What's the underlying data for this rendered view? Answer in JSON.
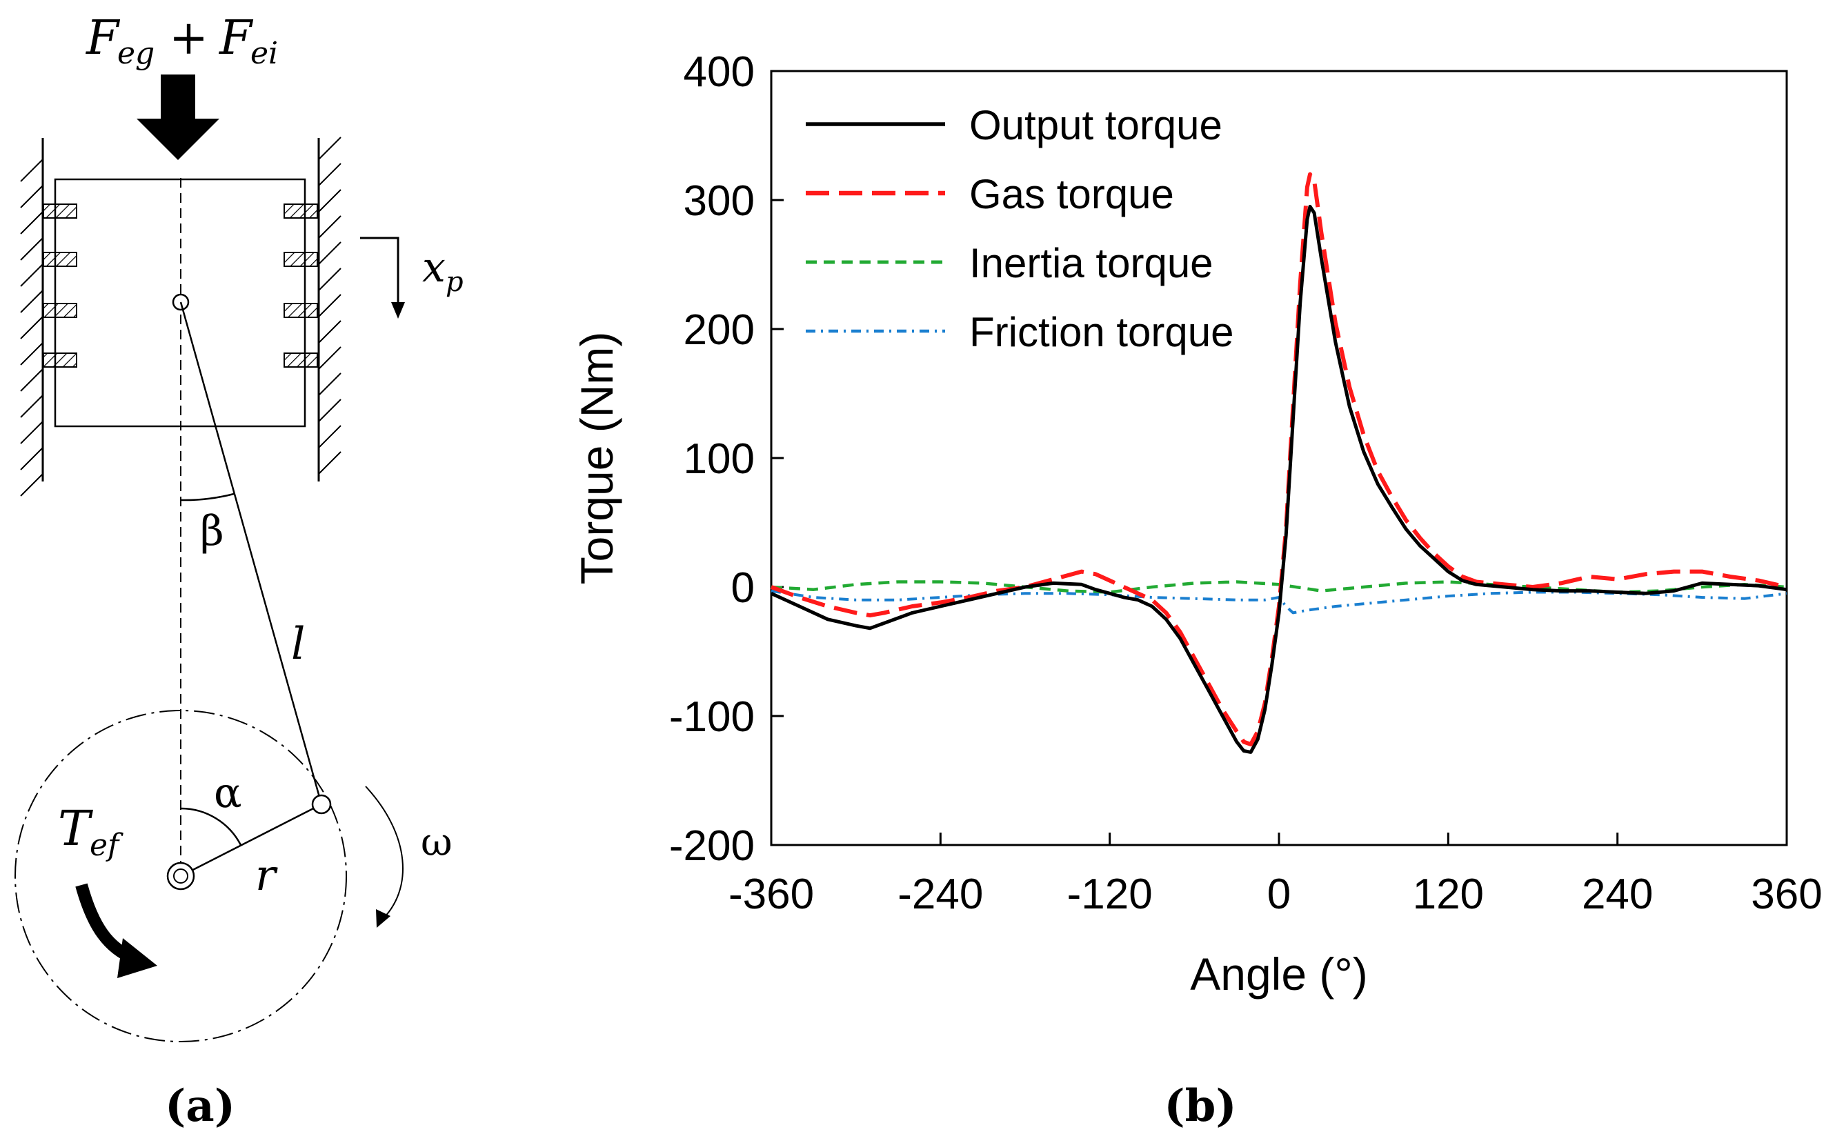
{
  "diagram": {
    "force_label_F1": "F",
    "force_sub_1": "eg",
    "force_plus": "+",
    "force_label_F2": "F",
    "force_sub_2": "ei",
    "xp_label": "x",
    "xp_sub": "p",
    "beta_label": "β",
    "rod_label": "l",
    "alpha_label": "α",
    "crank_label": "r",
    "torque_label": "T",
    "torque_sub": "ef",
    "omega_label": "ω"
  },
  "panel_labels": {
    "a": "(a)",
    "b": "(b)"
  },
  "chart_data": {
    "type": "line",
    "xlabel": "Angle (°)",
    "ylabel": "Torque (Nm)",
    "xlim": [
      -360,
      360
    ],
    "ylim": [
      -200,
      400
    ],
    "xticks": [
      "-360",
      "-240",
      "-120",
      "0",
      "120",
      "240",
      "360"
    ],
    "yticks": [
      "-200",
      "-100",
      "0",
      "100",
      "200",
      "300",
      "400"
    ],
    "legend_position": "top-left",
    "grid": false,
    "series": [
      {
        "name": "Output torque",
        "color": "#000000",
        "style": "solid",
        "x": [
          -360,
          -340,
          -320,
          -300,
          -290,
          -280,
          -260,
          -240,
          -220,
          -200,
          -180,
          -160,
          -140,
          -130,
          -120,
          -110,
          -100,
          -90,
          -80,
          -70,
          -60,
          -50,
          -40,
          -30,
          -25,
          -20,
          -15,
          -10,
          -5,
          0,
          5,
          10,
          15,
          20,
          22,
          25,
          30,
          40,
          50,
          60,
          70,
          80,
          90,
          100,
          110,
          120,
          130,
          140,
          160,
          180,
          200,
          220,
          240,
          260,
          280,
          300,
          320,
          340,
          360
        ],
        "y": [
          -5,
          -15,
          -25,
          -30,
          -32,
          -28,
          -20,
          -15,
          -10,
          -5,
          0,
          3,
          2,
          -2,
          -5,
          -8,
          -10,
          -15,
          -25,
          -40,
          -60,
          -80,
          -100,
          -120,
          -127,
          -128,
          -118,
          -95,
          -60,
          -20,
          40,
          130,
          220,
          285,
          295,
          290,
          255,
          190,
          140,
          105,
          80,
          62,
          45,
          32,
          22,
          12,
          5,
          2,
          0,
          -2,
          -3,
          -3,
          -4,
          -5,
          -3,
          3,
          2,
          1,
          -2
        ]
      },
      {
        "name": "Gas torque",
        "color": "#ff1a1a",
        "style": "dash",
        "x": [
          -360,
          -340,
          -320,
          -300,
          -290,
          -280,
          -260,
          -240,
          -220,
          -200,
          -180,
          -160,
          -140,
          -130,
          -120,
          -110,
          -100,
          -90,
          -80,
          -70,
          -60,
          -50,
          -40,
          -30,
          -25,
          -20,
          -15,
          -10,
          -5,
          0,
          5,
          10,
          15,
          20,
          22,
          25,
          30,
          40,
          50,
          60,
          70,
          80,
          90,
          100,
          110,
          120,
          130,
          140,
          160,
          180,
          200,
          220,
          240,
          260,
          280,
          300,
          320,
          340,
          360
        ],
        "y": [
          0,
          -8,
          -15,
          -20,
          -22,
          -20,
          -15,
          -12,
          -8,
          -3,
          0,
          6,
          12,
          10,
          5,
          0,
          -5,
          -10,
          -20,
          -35,
          -55,
          -75,
          -95,
          -112,
          -120,
          -122,
          -112,
          -90,
          -55,
          -15,
          45,
          140,
          235,
          310,
          320,
          315,
          275,
          205,
          155,
          118,
          90,
          70,
          52,
          38,
          26,
          16,
          8,
          4,
          2,
          0,
          3,
          8,
          6,
          10,
          12,
          12,
          8,
          5,
          0
        ]
      },
      {
        "name": "Inertia torque",
        "color": "#22aa33",
        "style": "shortdash",
        "x": [
          -360,
          -330,
          -300,
          -270,
          -240,
          -210,
          -180,
          -150,
          -120,
          -90,
          -60,
          -30,
          0,
          30,
          60,
          90,
          120,
          150,
          180,
          210,
          240,
          270,
          300,
          330,
          360
        ],
        "y": [
          0,
          -2,
          2,
          4,
          4,
          3,
          0,
          -3,
          -4,
          0,
          3,
          4,
          2,
          -3,
          0,
          3,
          4,
          2,
          0,
          -2,
          -4,
          -3,
          0,
          2,
          0
        ]
      },
      {
        "name": "Friction torque",
        "color": "#1a7fd0",
        "style": "dashdot",
        "x": [
          -360,
          -330,
          -300,
          -270,
          -240,
          -210,
          -180,
          -150,
          -120,
          -90,
          -60,
          -30,
          -10,
          0,
          5,
          10,
          20,
          40,
          60,
          90,
          120,
          150,
          180,
          210,
          240,
          270,
          300,
          330,
          360
        ],
        "y": [
          -3,
          -8,
          -10,
          -10,
          -8,
          -6,
          -5,
          -5,
          -6,
          -8,
          -9,
          -10,
          -10,
          -8,
          -15,
          -20,
          -18,
          -15,
          -13,
          -10,
          -7,
          -5,
          -4,
          -4,
          -5,
          -6,
          -8,
          -9,
          -5
        ]
      }
    ]
  }
}
